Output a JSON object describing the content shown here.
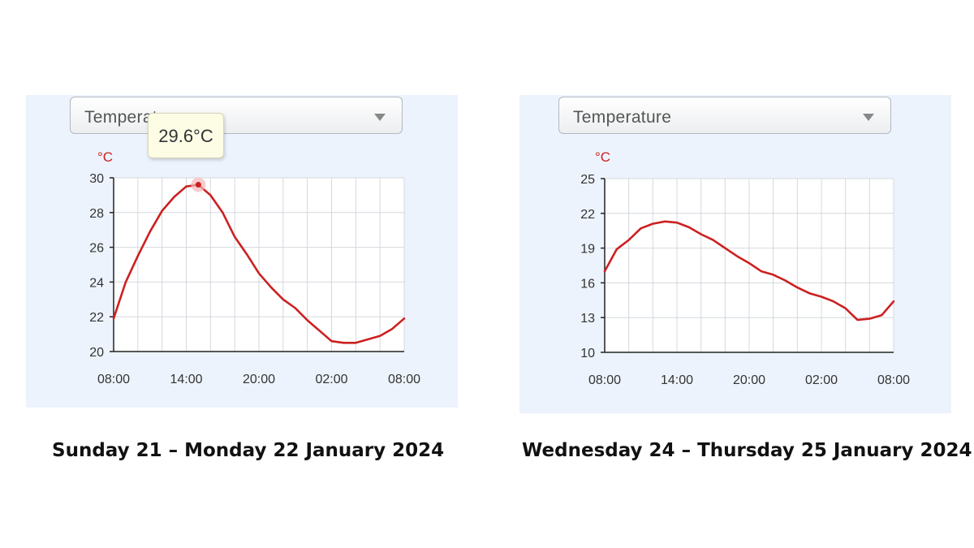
{
  "charts": [
    {
      "dropdown": {
        "value": "Temperature"
      },
      "tooltip": {
        "text": "29.6°C"
      },
      "caption": "Sunday 21 – Monday 22 January 2024"
    },
    {
      "dropdown": {
        "value": "Temperature"
      },
      "caption": "Wednesday 24 – Thursday 25 January 2024"
    }
  ],
  "colors": {
    "line": "#cc2020",
    "unit": "#cc2020",
    "grid": "#d4d8de",
    "panel": "#edf3fc"
  },
  "chart_data": [
    {
      "type": "line",
      "ylabel": "°C",
      "ylim": [
        20,
        30
      ],
      "yticks": [
        20,
        22,
        24,
        26,
        28,
        30
      ],
      "xlim": [
        0,
        24
      ],
      "xticks": [
        {
          "x": 0,
          "label": "08:00"
        },
        {
          "x": 6,
          "label": "14:00"
        },
        {
          "x": 12,
          "label": "20:00"
        },
        {
          "x": 18,
          "label": "02:00"
        },
        {
          "x": 24,
          "label": "08:00"
        }
      ],
      "grid": true,
      "highlight": {
        "x": 7,
        "y": 29.6
      },
      "series": [
        {
          "x": [
            0,
            1,
            2,
            3,
            4,
            5,
            6,
            7,
            8,
            9,
            10,
            11,
            12,
            13,
            14,
            15,
            16,
            17,
            18,
            19,
            20,
            21,
            22,
            23,
            24
          ],
          "y": [
            21.9,
            24.0,
            25.5,
            26.9,
            28.1,
            28.9,
            29.5,
            29.6,
            29.0,
            28.0,
            26.6,
            25.6,
            24.5,
            23.7,
            23.0,
            22.5,
            21.8,
            21.2,
            20.6,
            20.5,
            20.5,
            20.7,
            20.9,
            21.3,
            21.9
          ]
        }
      ]
    },
    {
      "type": "line",
      "ylabel": "°C",
      "ylim": [
        10,
        25
      ],
      "yticks": [
        10,
        13,
        16,
        19,
        22,
        25
      ],
      "xlim": [
        0,
        24
      ],
      "xticks": [
        {
          "x": 0,
          "label": "08:00"
        },
        {
          "x": 6,
          "label": "14:00"
        },
        {
          "x": 12,
          "label": "20:00"
        },
        {
          "x": 18,
          "label": "02:00"
        },
        {
          "x": 24,
          "label": "08:00"
        }
      ],
      "grid": true,
      "series": [
        {
          "x": [
            0,
            1,
            2,
            3,
            4,
            5,
            6,
            7,
            8,
            9,
            10,
            11,
            12,
            13,
            14,
            15,
            16,
            17,
            18,
            19,
            20,
            21,
            22,
            23,
            24
          ],
          "y": [
            17.0,
            18.9,
            19.7,
            20.7,
            21.1,
            21.3,
            21.2,
            20.8,
            20.2,
            19.7,
            19.0,
            18.3,
            17.7,
            17.0,
            16.7,
            16.2,
            15.6,
            15.1,
            14.8,
            14.4,
            13.8,
            12.8,
            12.9,
            13.2,
            14.4
          ]
        }
      ]
    }
  ]
}
